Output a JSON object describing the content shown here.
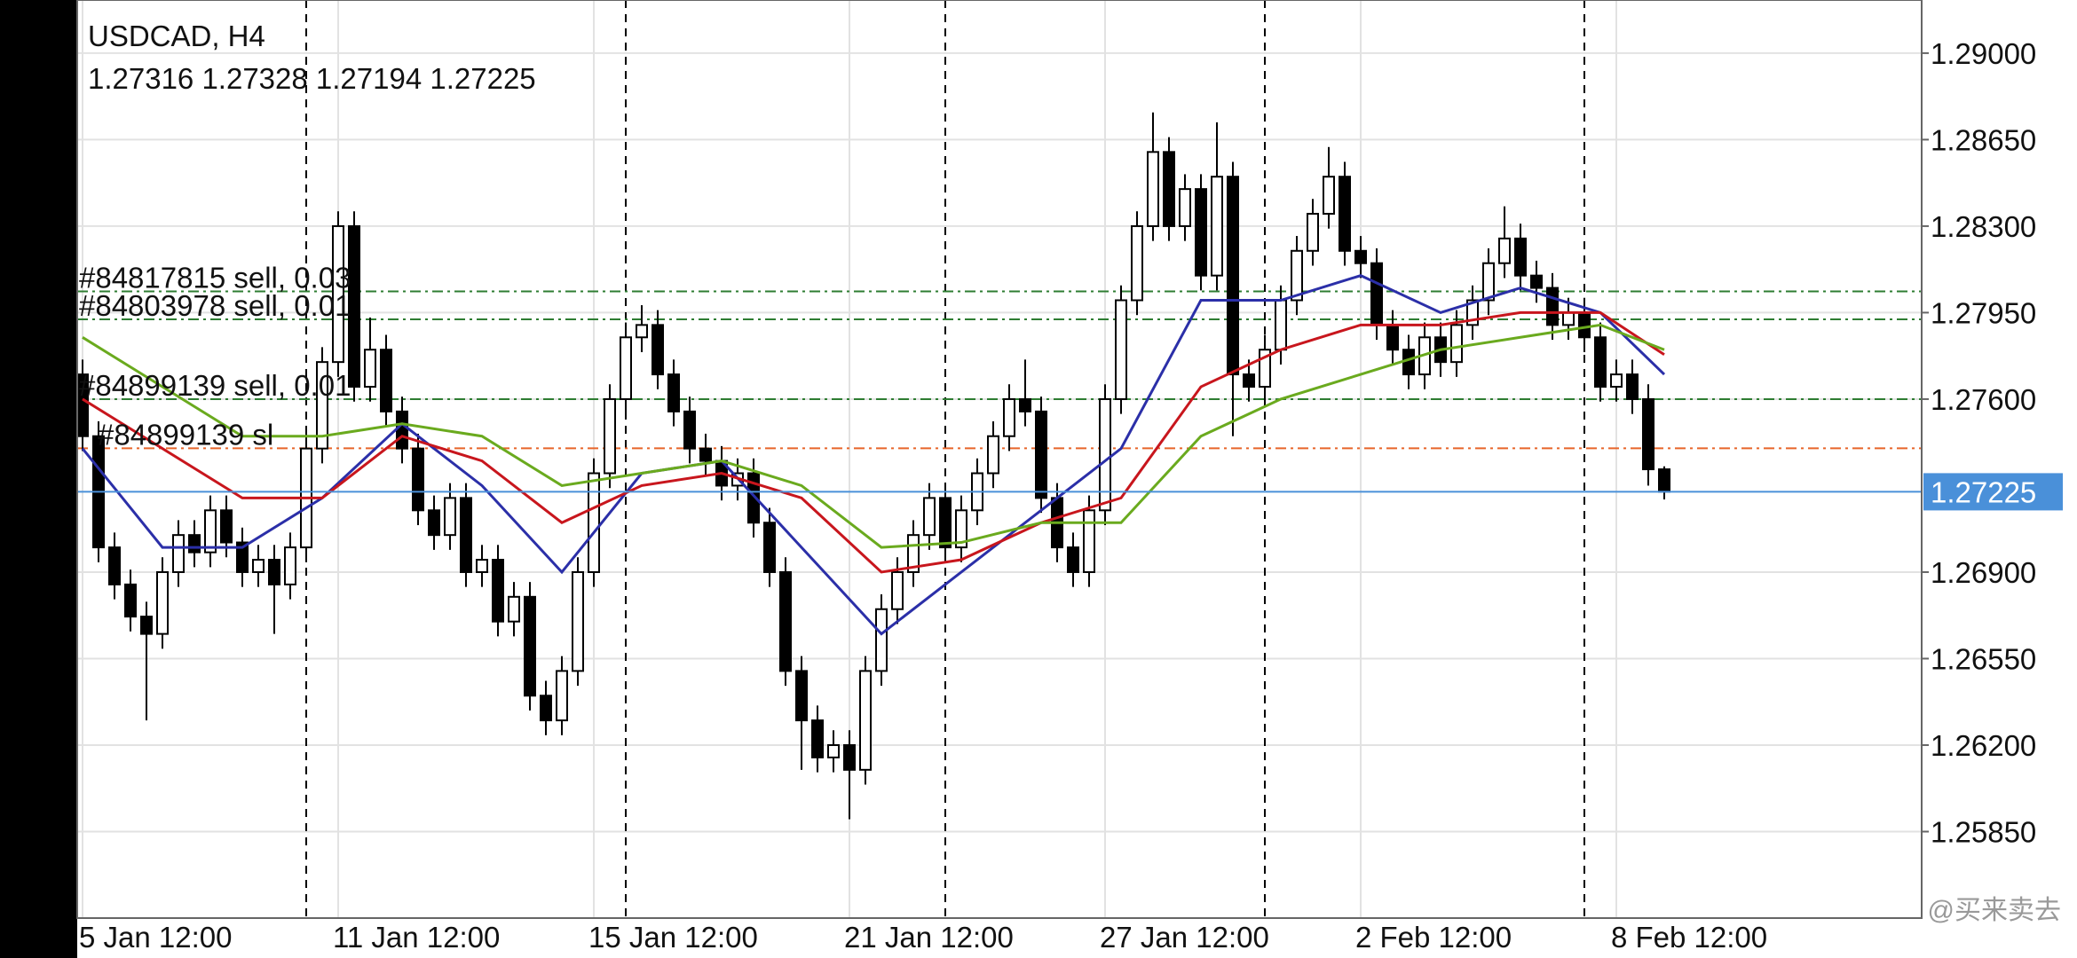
{
  "chart_data": {
    "type": "candlestick",
    "title": "USDCAD, H4",
    "subtitle": "1.27316 1.27328 1.27194 1.27225",
    "watermark": "@买来卖去",
    "categories": [
      "5 Jan 12:00",
      null,
      null,
      null,
      null,
      null,
      null,
      null,
      null,
      null,
      null,
      null,
      null,
      null,
      null,
      null,
      "11 Jan 12:00",
      null,
      null,
      null,
      null,
      null,
      null,
      null,
      null,
      null,
      null,
      null,
      null,
      null,
      null,
      null,
      "15 Jan 12:00",
      null,
      null,
      null,
      null,
      null,
      null,
      null,
      null,
      null,
      null,
      null,
      null,
      null,
      null,
      null,
      "21 Jan 12:00",
      null,
      null,
      null,
      null,
      null,
      null,
      null,
      null,
      null,
      null,
      null,
      null,
      null,
      null,
      null,
      "27 Jan 12:00",
      null,
      null,
      null,
      null,
      null,
      null,
      null,
      null,
      null,
      null,
      null,
      null,
      null,
      null,
      null,
      "2 Feb 12:00",
      null,
      null,
      null,
      null,
      null,
      null,
      null,
      null,
      null,
      null,
      null,
      null,
      null,
      null,
      null,
      "8 Feb 12:00",
      null,
      null,
      null
    ],
    "open": [
      1.277,
      1.2745,
      1.27,
      1.2685,
      1.2672,
      1.2665,
      1.269,
      1.2705,
      1.2698,
      1.2715,
      1.2702,
      1.269,
      1.2695,
      1.2685,
      1.27,
      1.274,
      1.2775,
      1.283,
      1.2765,
      1.278,
      1.2755,
      1.274,
      1.2715,
      1.2705,
      1.272,
      1.269,
      1.2695,
      1.267,
      1.268,
      1.264,
      1.263,
      1.265,
      1.269,
      1.273,
      1.276,
      1.2785,
      1.279,
      1.277,
      1.2755,
      1.274,
      1.2735,
      1.2725,
      1.273,
      1.271,
      1.269,
      1.265,
      1.263,
      1.2615,
      1.262,
      1.261,
      1.265,
      1.2675,
      1.269,
      1.2705,
      1.272,
      1.27,
      1.2715,
      1.273,
      1.2745,
      1.276,
      1.2755,
      1.272,
      1.27,
      1.269,
      1.2715,
      1.276,
      1.28,
      1.283,
      1.286,
      1.283,
      1.2845,
      1.281,
      1.285,
      1.277,
      1.2765,
      1.278,
      1.28,
      1.282,
      1.2835,
      1.285,
      1.282,
      1.2815,
      1.279,
      1.278,
      1.277,
      1.2785,
      1.2775,
      1.279,
      1.28,
      1.2815,
      1.2825,
      1.281,
      1.2805,
      1.279,
      1.2795,
      1.2785,
      1.2765,
      1.277,
      1.276,
      1.27316
    ],
    "high": [
      1.2776,
      1.2751,
      1.2706,
      1.2691,
      1.2678,
      1.2696,
      1.2711,
      1.2711,
      1.2721,
      1.2721,
      1.2708,
      1.2701,
      1.2701,
      1.2706,
      1.2746,
      1.2781,
      1.2836,
      1.2836,
      1.2793,
      1.2786,
      1.2761,
      1.2746,
      1.2721,
      1.2726,
      1.2726,
      1.2701,
      1.2701,
      1.2686,
      1.2686,
      1.2646,
      1.2656,
      1.2696,
      1.2736,
      1.2766,
      1.2791,
      1.2798,
      1.2796,
      1.2776,
      1.2761,
      1.2746,
      1.2741,
      1.2736,
      1.2736,
      1.2716,
      1.2696,
      1.2656,
      1.2636,
      1.2626,
      1.2626,
      1.2656,
      1.2681,
      1.2696,
      1.2711,
      1.2726,
      1.2726,
      1.2721,
      1.2736,
      1.2751,
      1.2766,
      1.2776,
      1.2761,
      1.2726,
      1.2706,
      1.2721,
      1.2766,
      1.2806,
      1.2836,
      1.2876,
      1.2866,
      1.2851,
      1.2851,
      1.2872,
      1.2856,
      1.2776,
      1.2786,
      1.2806,
      1.2826,
      1.2841,
      1.2862,
      1.2856,
      1.2826,
      1.2821,
      1.2796,
      1.2786,
      1.2791,
      1.2791,
      1.2796,
      1.2806,
      1.2821,
      1.2838,
      1.2831,
      1.2816,
      1.2811,
      1.2801,
      1.2801,
      1.2791,
      1.2776,
      1.2776,
      1.2766,
      1.27328
    ],
    "low": [
      1.2739,
      1.2694,
      1.2679,
      1.2666,
      1.263,
      1.2659,
      1.2684,
      1.2692,
      1.2692,
      1.2696,
      1.2684,
      1.2684,
      1.2665,
      1.2679,
      1.2694,
      1.2734,
      1.2769,
      1.2759,
      1.2759,
      1.2749,
      1.2734,
      1.2709,
      1.2699,
      1.2699,
      1.2684,
      1.2684,
      1.2664,
      1.2664,
      1.2634,
      1.2624,
      1.2624,
      1.2644,
      1.2684,
      1.2724,
      1.2754,
      1.2779,
      1.2764,
      1.2749,
      1.2734,
      1.2729,
      1.2719,
      1.2719,
      1.2704,
      1.2684,
      1.2644,
      1.261,
      1.2609,
      1.2609,
      1.259,
      1.2604,
      1.2644,
      1.2669,
      1.2684,
      1.2699,
      1.2694,
      1.2694,
      1.2709,
      1.2724,
      1.2739,
      1.2749,
      1.2714,
      1.2694,
      1.2684,
      1.2684,
      1.2709,
      1.2754,
      1.2794,
      1.2824,
      1.2824,
      1.2824,
      1.2804,
      1.2804,
      1.2745,
      1.2759,
      1.2759,
      1.2774,
      1.2794,
      1.2814,
      1.2829,
      1.2814,
      1.2809,
      1.2784,
      1.2774,
      1.2764,
      1.2764,
      1.2769,
      1.2769,
      1.2784,
      1.2794,
      1.2809,
      1.2804,
      1.2799,
      1.2784,
      1.2784,
      1.2779,
      1.2759,
      1.2759,
      1.2754,
      1.2725,
      1.27194
    ],
    "close": [
      1.2745,
      1.27,
      1.2685,
      1.2672,
      1.2665,
      1.269,
      1.2705,
      1.2698,
      1.2715,
      1.2702,
      1.269,
      1.2695,
      1.2685,
      1.27,
      1.274,
      1.2775,
      1.283,
      1.2765,
      1.278,
      1.2755,
      1.274,
      1.2715,
      1.2705,
      1.272,
      1.269,
      1.2695,
      1.267,
      1.268,
      1.264,
      1.263,
      1.265,
      1.269,
      1.273,
      1.276,
      1.2785,
      1.279,
      1.277,
      1.2755,
      1.274,
      1.2735,
      1.2725,
      1.273,
      1.271,
      1.269,
      1.265,
      1.263,
      1.2615,
      1.262,
      1.261,
      1.265,
      1.2675,
      1.269,
      1.2705,
      1.272,
      1.27,
      1.2715,
      1.273,
      1.2745,
      1.276,
      1.2755,
      1.272,
      1.27,
      1.269,
      1.2715,
      1.276,
      1.28,
      1.283,
      1.286,
      1.283,
      1.2845,
      1.281,
      1.285,
      1.277,
      1.2765,
      1.278,
      1.28,
      1.282,
      1.2835,
      1.285,
      1.282,
      1.2815,
      1.279,
      1.278,
      1.277,
      1.2785,
      1.2775,
      1.279,
      1.28,
      1.2815,
      1.2825,
      1.281,
      1.2805,
      1.279,
      1.2795,
      1.2785,
      1.2765,
      1.277,
      1.276,
      1.27316,
      1.27225
    ],
    "ma_index": [
      0,
      5,
      10,
      15,
      20,
      25,
      30,
      35,
      40,
      45,
      50,
      55,
      60,
      65,
      70,
      75,
      80,
      85,
      90,
      95,
      99
    ],
    "ma": [
      {
        "color": "#2b2fa8",
        "values": [
          1.274,
          1.27,
          1.27,
          1.272,
          1.275,
          1.2725,
          1.269,
          1.273,
          1.2735,
          1.27,
          1.2665,
          1.269,
          1.2715,
          1.274,
          1.28,
          1.28,
          1.281,
          1.2795,
          1.2805,
          1.2795,
          1.277
        ]
      },
      {
        "color": "#c8161d",
        "values": [
          1.276,
          1.274,
          1.272,
          1.272,
          1.2745,
          1.2735,
          1.271,
          1.2725,
          1.273,
          1.272,
          1.269,
          1.2695,
          1.271,
          1.272,
          1.2765,
          1.278,
          1.279,
          1.279,
          1.2795,
          1.2795,
          1.2778
        ]
      },
      {
        "color": "#6aaa1e",
        "values": [
          1.2785,
          1.2765,
          1.2745,
          1.2745,
          1.275,
          1.2745,
          1.2725,
          1.273,
          1.2735,
          1.2725,
          1.27,
          1.2702,
          1.271,
          1.271,
          1.2745,
          1.276,
          1.277,
          1.278,
          1.2785,
          1.279,
          1.278
        ]
      }
    ],
    "levels": [
      {
        "label": "#84817815 sell, 0.03",
        "value": 1.28036,
        "color": "#2e7d32"
      },
      {
        "label": "#84803978 sell, 0.01",
        "value": 1.27923,
        "color": "#2e7d32"
      },
      {
        "label": "#84899139 sell, 0.01",
        "value": 1.276,
        "color": "#2e7d32"
      },
      {
        "label": "#84899139 sl",
        "value": 1.27401,
        "color": "#e8652a"
      }
    ],
    "price_line_color": "#4a90d9",
    "separators": [
      14,
      34,
      54,
      74,
      94
    ],
    "ylim": [
      1.255,
      1.29215
    ],
    "yticks": [
      {
        "value": 1.2585,
        "label": "1.25850"
      },
      {
        "value": 1.262,
        "label": "1.26200"
      },
      {
        "value": 1.2655,
        "label": "1.26550"
      },
      {
        "value": 1.269,
        "label": "1.26900"
      },
      {
        "value": 1.276,
        "label": "1.27600"
      },
      {
        "value": 1.2795,
        "label": "1.27950"
      },
      {
        "value": 1.283,
        "label": "1.28300"
      },
      {
        "value": 1.2865,
        "label": "1.28650"
      },
      {
        "value": 1.29,
        "label": "1.29000"
      }
    ],
    "grid": true
  }
}
